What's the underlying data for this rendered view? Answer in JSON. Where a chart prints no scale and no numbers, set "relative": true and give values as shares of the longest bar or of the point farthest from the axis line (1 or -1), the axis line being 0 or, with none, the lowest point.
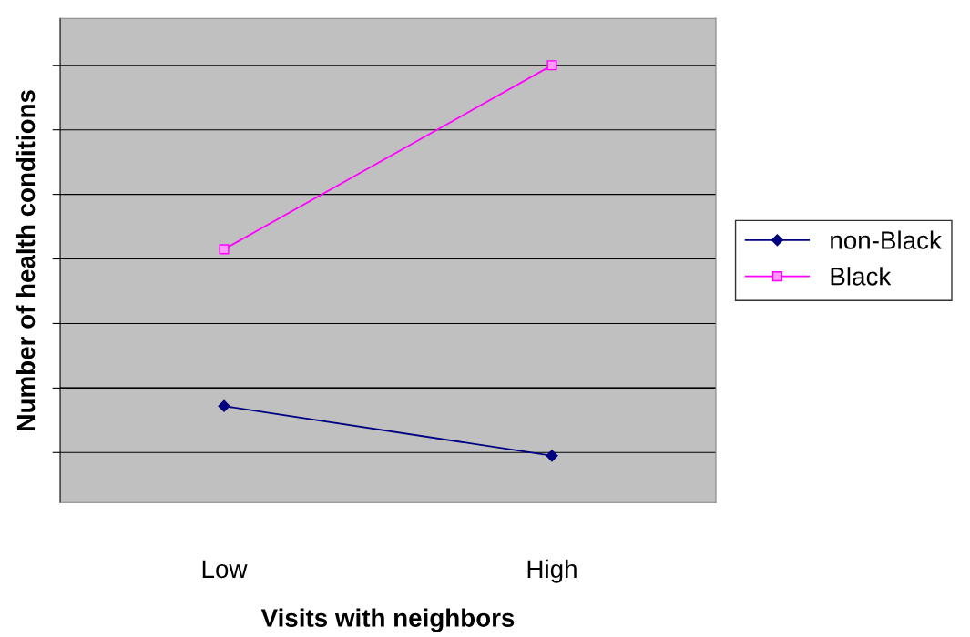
{
  "chart_data": {
    "type": "line",
    "relative": true,
    "xlabel": "Visits with neighbors",
    "ylabel": "Number of health conditions",
    "categories": [
      "Low",
      "High"
    ],
    "series": [
      {
        "name": "non-Black",
        "color": "#000080",
        "marker": "diamond",
        "values": [
          -0.056,
          -0.21
        ]
      },
      {
        "name": "Black",
        "color": "#ff00ff",
        "marker": "square",
        "values": [
          0.43,
          1.0
        ]
      }
    ],
    "grid": "y",
    "legend": "right"
  }
}
